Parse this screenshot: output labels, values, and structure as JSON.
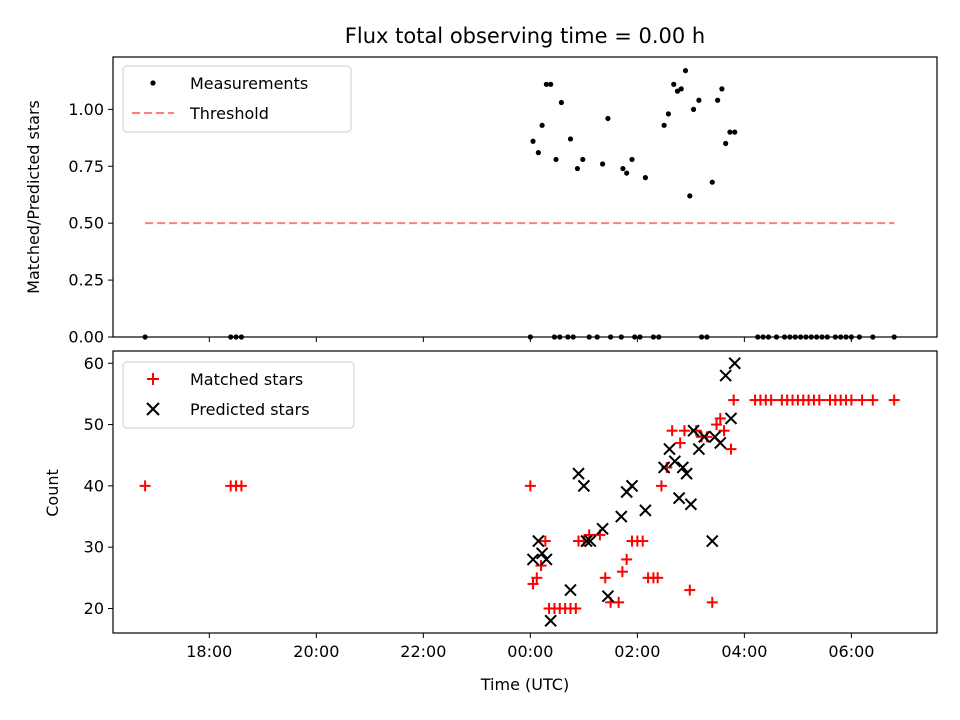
{
  "chart_data": [
    {
      "type": "scatter",
      "title": "Flux total observing time = 0.00 h",
      "xlabel": "",
      "ylabel": "Matched/Predicted stars",
      "xlim": [
        -7.8,
        7.6
      ],
      "ylim": [
        0,
        1.23
      ],
      "yticks": [
        {
          "value": 0.0,
          "label": "0.00"
        },
        {
          "value": 0.25,
          "label": "0.25"
        },
        {
          "value": 0.5,
          "label": "0.50"
        },
        {
          "value": 0.75,
          "label": "0.75"
        },
        {
          "value": 1.0,
          "label": "1.00"
        }
      ],
      "legend_position": "top-left",
      "series": [
        {
          "name": "Measurements",
          "style": "dot",
          "color": "#000000",
          "points": [
            [
              -7.2,
              0
            ],
            [
              -5.6,
              0
            ],
            [
              -5.5,
              0
            ],
            [
              -5.4,
              0
            ],
            [
              0.05,
              0.86
            ],
            [
              0.15,
              0.81
            ],
            [
              0.22,
              0.93
            ],
            [
              0.3,
              1.11
            ],
            [
              0.38,
              1.11
            ],
            [
              0.48,
              0.78
            ],
            [
              0.58,
              1.03
            ],
            [
              0.75,
              0.87
            ],
            [
              0.88,
              0.74
            ],
            [
              0.98,
              0.78
            ],
            [
              1.35,
              0.76
            ],
            [
              1.45,
              0.96
            ],
            [
              1.73,
              0.74
            ],
            [
              1.8,
              0.72
            ],
            [
              1.9,
              0.78
            ],
            [
              2.15,
              0.7
            ],
            [
              2.5,
              0.93
            ],
            [
              2.58,
              0.98
            ],
            [
              2.68,
              1.11
            ],
            [
              2.75,
              1.08
            ],
            [
              2.82,
              1.09
            ],
            [
              2.9,
              1.17
            ],
            [
              2.98,
              0.62
            ],
            [
              3.05,
              1.0
            ],
            [
              3.15,
              1.04
            ],
            [
              3.4,
              0.68
            ],
            [
              3.5,
              1.04
            ],
            [
              3.58,
              1.09
            ],
            [
              3.65,
              0.85
            ],
            [
              3.73,
              0.9
            ],
            [
              3.82,
              0.9
            ],
            [
              0,
              0
            ],
            [
              0.45,
              0
            ],
            [
              0.55,
              0
            ],
            [
              0.7,
              0
            ],
            [
              0.8,
              0
            ],
            [
              1.1,
              0
            ],
            [
              1.25,
              0
            ],
            [
              1.5,
              0
            ],
            [
              1.7,
              0
            ],
            [
              1.95,
              0
            ],
            [
              2.05,
              0
            ],
            [
              2.3,
              0
            ],
            [
              2.4,
              0
            ],
            [
              3.2,
              0
            ],
            [
              3.3,
              0
            ],
            [
              4.25,
              0
            ],
            [
              4.35,
              0
            ],
            [
              4.45,
              0
            ],
            [
              4.6,
              0
            ],
            [
              4.75,
              0
            ],
            [
              4.85,
              0
            ],
            [
              4.95,
              0
            ],
            [
              5.05,
              0
            ],
            [
              5.15,
              0
            ],
            [
              5.25,
              0
            ],
            [
              5.35,
              0
            ],
            [
              5.45,
              0
            ],
            [
              5.55,
              0
            ],
            [
              5.7,
              0
            ],
            [
              5.8,
              0
            ],
            [
              5.9,
              0
            ],
            [
              6.0,
              0
            ],
            [
              6.15,
              0
            ],
            [
              6.4,
              0
            ],
            [
              6.8,
              0
            ]
          ]
        },
        {
          "name": "Threshold",
          "style": "dashed-line",
          "color": "#ff7f7f",
          "points": [
            [
              -7.2,
              0.5
            ],
            [
              6.8,
              0.5
            ]
          ]
        }
      ]
    },
    {
      "type": "scatter",
      "title": "",
      "xlabel": "Time (UTC)",
      "ylabel": "Count",
      "xlim": [
        -7.8,
        7.6
      ],
      "ylim": [
        16,
        62
      ],
      "yticks": [
        {
          "value": 20,
          "label": "20"
        },
        {
          "value": 30,
          "label": "30"
        },
        {
          "value": 40,
          "label": "40"
        },
        {
          "value": 50,
          "label": "50"
        },
        {
          "value": 60,
          "label": "60"
        }
      ],
      "xticks": [
        {
          "value": -6,
          "label": "18:00"
        },
        {
          "value": -4,
          "label": "20:00"
        },
        {
          "value": -2,
          "label": "22:00"
        },
        {
          "value": 0,
          "label": "00:00"
        },
        {
          "value": 2,
          "label": "02:00"
        },
        {
          "value": 4,
          "label": "04:00"
        },
        {
          "value": 6,
          "label": "06:00"
        }
      ],
      "legend_position": "top-left",
      "series": [
        {
          "name": "Matched stars",
          "style": "plus",
          "color": "#ff0000",
          "points": [
            [
              -7.2,
              40
            ],
            [
              -5.6,
              40
            ],
            [
              -5.5,
              40
            ],
            [
              -5.4,
              40
            ],
            [
              0,
              40
            ],
            [
              0.05,
              24
            ],
            [
              0.12,
              25
            ],
            [
              0.2,
              27
            ],
            [
              0.28,
              31
            ],
            [
              0.35,
              20
            ],
            [
              0.45,
              20
            ],
            [
              0.55,
              20
            ],
            [
              0.65,
              20
            ],
            [
              0.75,
              20
            ],
            [
              0.85,
              20
            ],
            [
              0.9,
              31
            ],
            [
              1.0,
              31
            ],
            [
              1.1,
              32
            ],
            [
              1.3,
              32
            ],
            [
              1.4,
              25
            ],
            [
              1.5,
              21
            ],
            [
              1.65,
              21
            ],
            [
              1.72,
              26
            ],
            [
              1.8,
              28
            ],
            [
              1.9,
              31
            ],
            [
              2.0,
              31
            ],
            [
              2.1,
              31
            ],
            [
              2.2,
              25
            ],
            [
              2.3,
              25
            ],
            [
              2.38,
              25
            ],
            [
              2.45,
              40
            ],
            [
              2.55,
              43
            ],
            [
              2.65,
              49
            ],
            [
              2.8,
              47
            ],
            [
              2.88,
              49
            ],
            [
              2.98,
              23
            ],
            [
              3.1,
              49
            ],
            [
              3.2,
              48
            ],
            [
              3.3,
              48
            ],
            [
              3.4,
              21
            ],
            [
              3.48,
              50
            ],
            [
              3.55,
              51
            ],
            [
              3.62,
              49
            ],
            [
              3.75,
              46
            ],
            [
              3.8,
              54
            ],
            [
              4.2,
              54
            ],
            [
              4.3,
              54
            ],
            [
              4.4,
              54
            ],
            [
              4.5,
              54
            ],
            [
              4.7,
              54
            ],
            [
              4.8,
              54
            ],
            [
              4.9,
              54
            ],
            [
              5.0,
              54
            ],
            [
              5.1,
              54
            ],
            [
              5.2,
              54
            ],
            [
              5.3,
              54
            ],
            [
              5.4,
              54
            ],
            [
              5.6,
              54
            ],
            [
              5.7,
              54
            ],
            [
              5.8,
              54
            ],
            [
              5.9,
              54
            ],
            [
              6.0,
              54
            ],
            [
              6.2,
              54
            ],
            [
              6.4,
              54
            ],
            [
              6.8,
              54
            ]
          ]
        },
        {
          "name": "Predicted stars",
          "style": "x",
          "color": "#000000",
          "points": [
            [
              0.05,
              28
            ],
            [
              0.15,
              31
            ],
            [
              0.22,
              29
            ],
            [
              0.3,
              28
            ],
            [
              0.38,
              18
            ],
            [
              0.75,
              23
            ],
            [
              0.9,
              42
            ],
            [
              1.0,
              40
            ],
            [
              1.05,
              31
            ],
            [
              1.12,
              31
            ],
            [
              1.35,
              33
            ],
            [
              1.45,
              22
            ],
            [
              1.7,
              35
            ],
            [
              1.8,
              39
            ],
            [
              1.9,
              40
            ],
            [
              2.15,
              36
            ],
            [
              2.5,
              43
            ],
            [
              2.6,
              46
            ],
            [
              2.7,
              44
            ],
            [
              2.78,
              38
            ],
            [
              2.85,
              43
            ],
            [
              2.92,
              42
            ],
            [
              3.0,
              37
            ],
            [
              3.05,
              49
            ],
            [
              3.15,
              46
            ],
            [
              3.25,
              48
            ],
            [
              3.4,
              31
            ],
            [
              3.45,
              48
            ],
            [
              3.55,
              47
            ],
            [
              3.65,
              58
            ],
            [
              3.75,
              51
            ],
            [
              3.82,
              60
            ]
          ]
        }
      ]
    }
  ]
}
